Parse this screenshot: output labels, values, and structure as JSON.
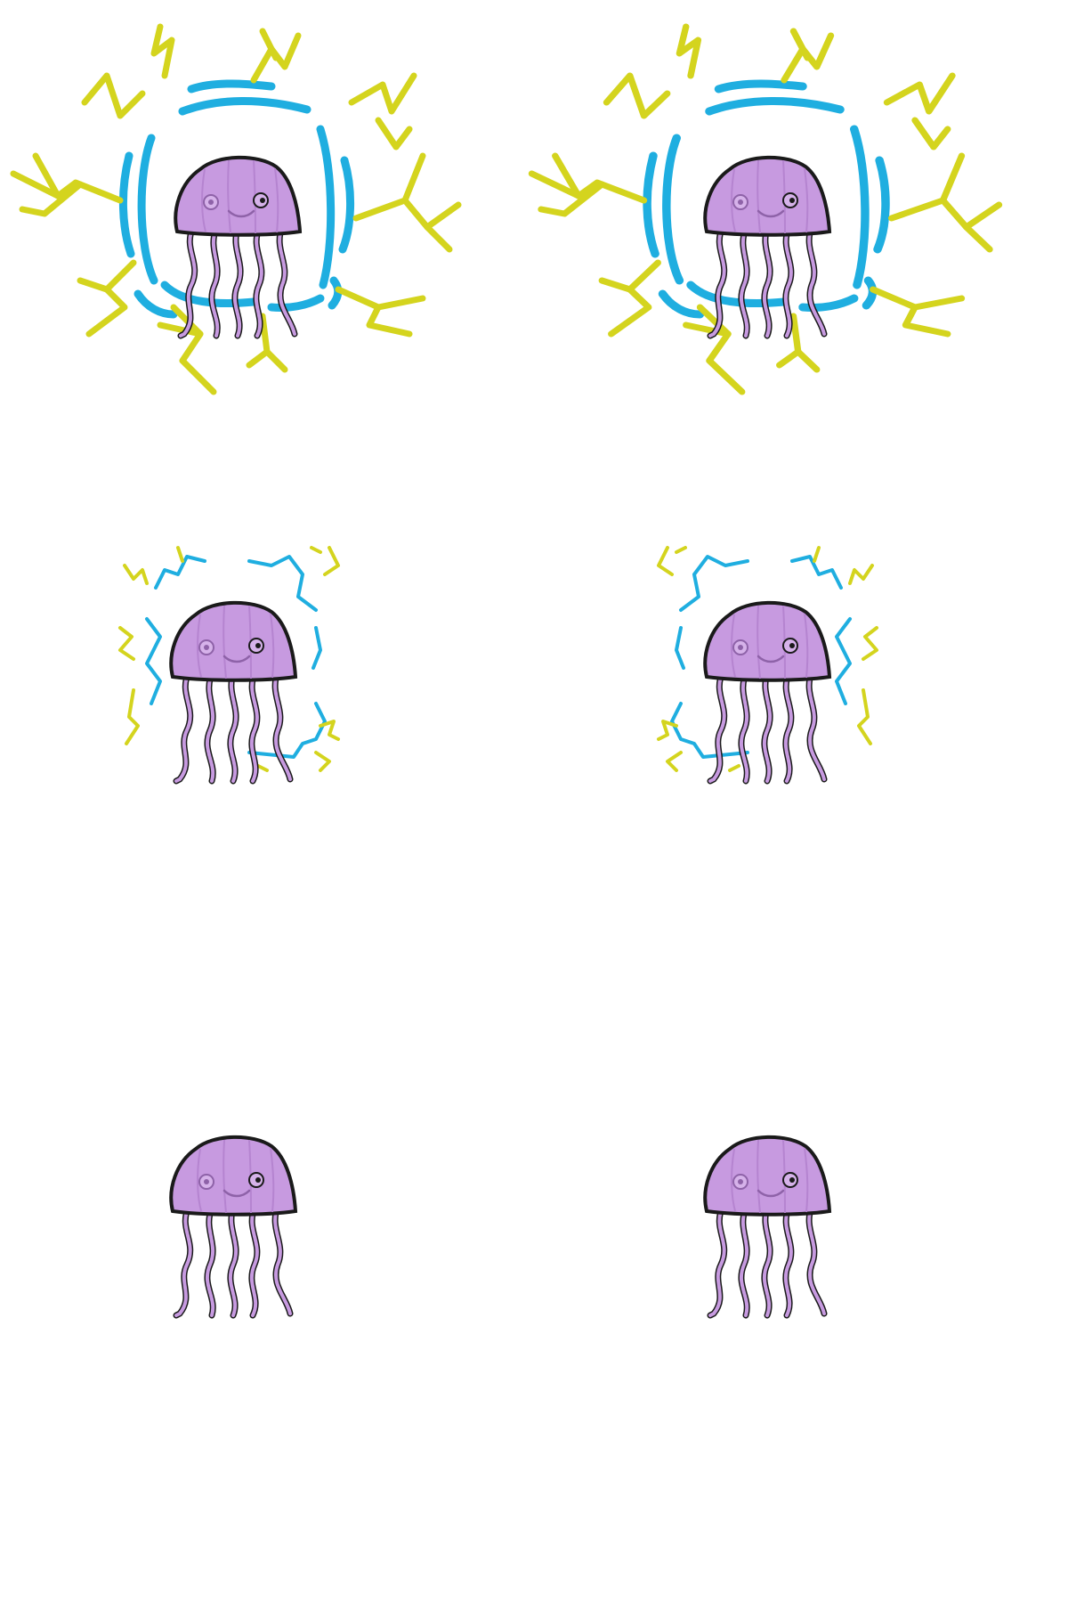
{
  "sprite_sheet": {
    "colors": {
      "body_fill": "#c79ae0",
      "body_outline": "#1a1a1a",
      "body_shade": "#b584d0",
      "electric_yellow": "#d4d41e",
      "electric_blue": "#1faee0"
    },
    "sprites": [
      {
        "name": "jellyfish-frame-1",
        "glow": "strong"
      },
      {
        "name": "jellyfish-frame-2",
        "glow": "strong"
      },
      {
        "name": "jellyfish-frame-3",
        "glow": "faint"
      },
      {
        "name": "jellyfish-frame-4",
        "glow": "faint"
      },
      {
        "name": "jellyfish-frame-5",
        "glow": "none"
      },
      {
        "name": "jellyfish-frame-6",
        "glow": "none"
      }
    ]
  }
}
